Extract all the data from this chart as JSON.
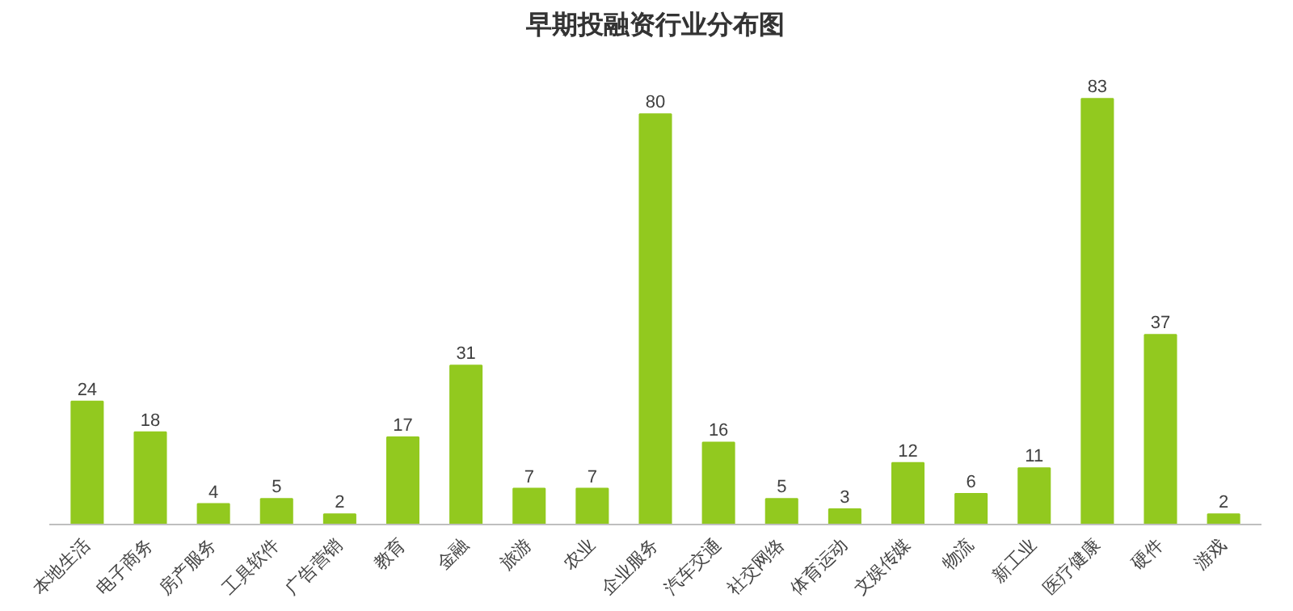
{
  "chart_data": {
    "type": "bar",
    "title": "早期投融资行业分布图",
    "categories": [
      "本地生活",
      "电子商务",
      "房产服务",
      "工具软件",
      "广告营销",
      "教育",
      "金融",
      "旅游",
      "农业",
      "企业服务",
      "汽车交通",
      "社交网络",
      "体育运动",
      "文娱传媒",
      "物流",
      "新工业",
      "医疗健康",
      "硬件",
      "游戏"
    ],
    "values": [
      24,
      18,
      4,
      5,
      2,
      17,
      31,
      7,
      7,
      80,
      16,
      5,
      3,
      12,
      6,
      11,
      83,
      37,
      2
    ],
    "color": "#92c91f",
    "data_labels": true
  }
}
